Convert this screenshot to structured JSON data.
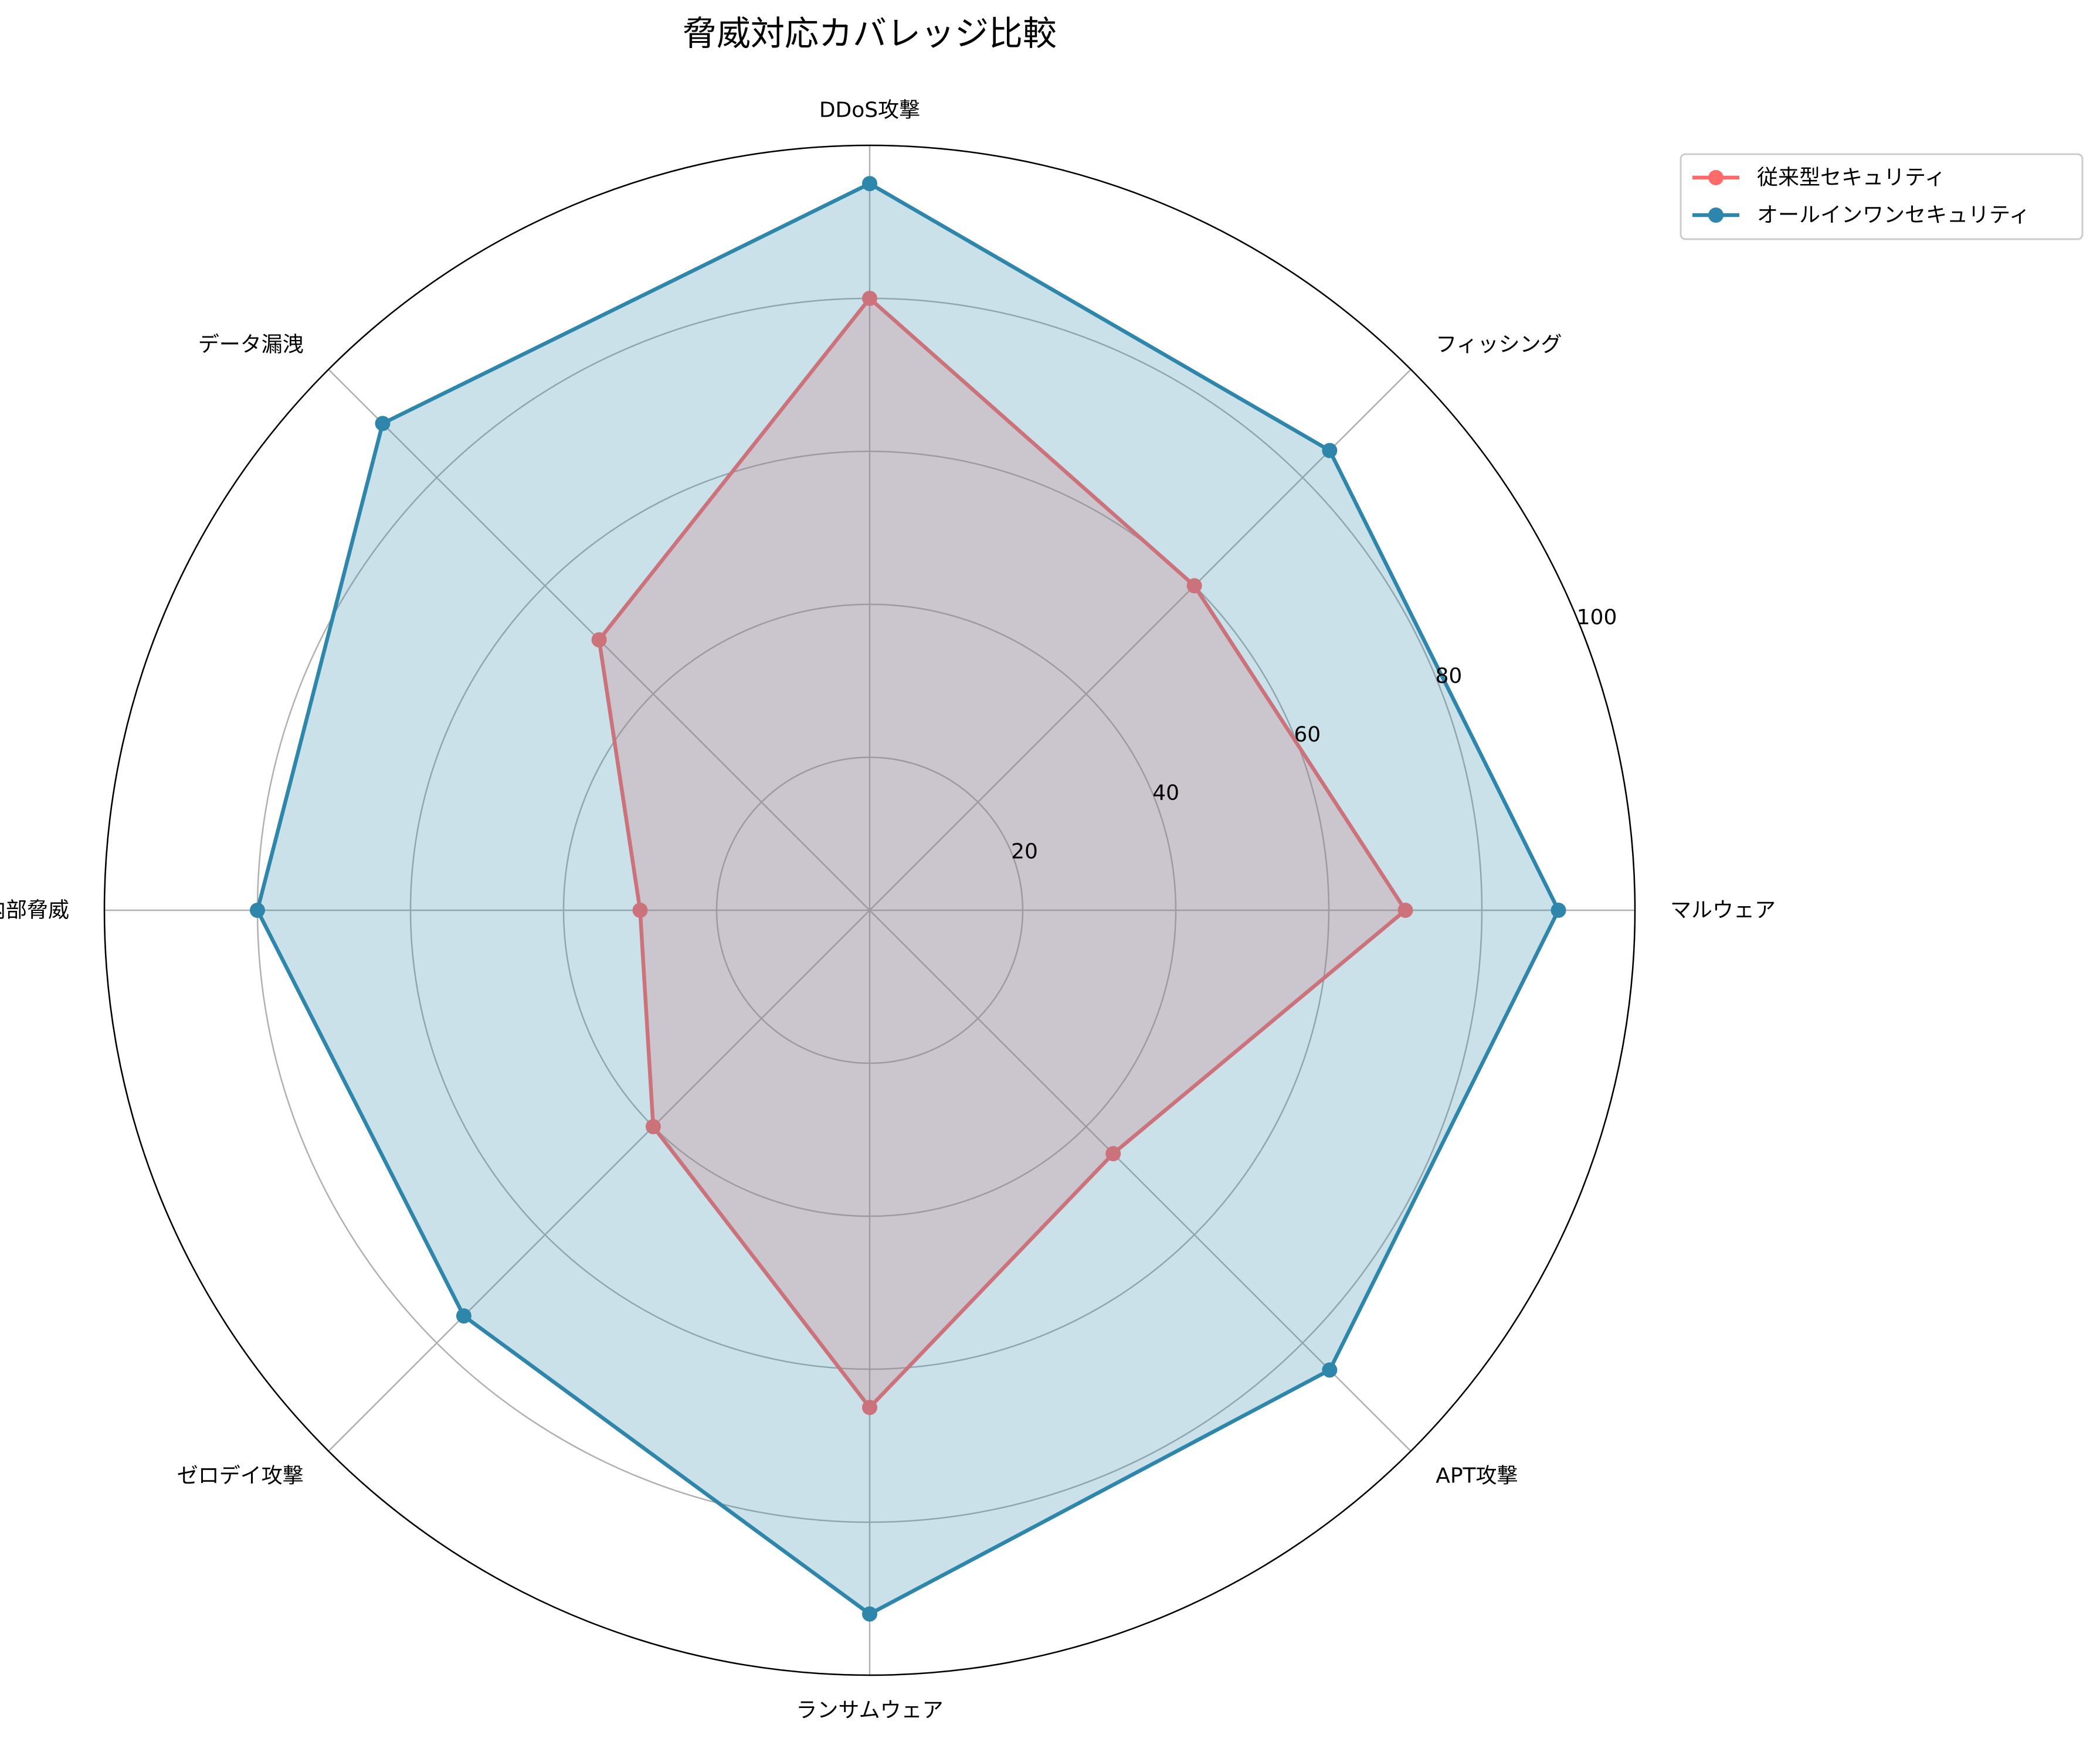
{
  "chart_data": {
    "type": "radar",
    "title": "脅威対応カバレッジ比較",
    "categories": [
      "マルウェア",
      "フィッシング",
      "DDoS攻撃",
      "データ漏洩",
      "内部脅威",
      "ゼロデイ攻撃",
      "ランサムウェア",
      "APT攻撃"
    ],
    "series": [
      {
        "name": "従来型セキュリティ",
        "values": [
          70,
          60,
          80,
          50,
          30,
          40,
          65,
          45
        ],
        "color": "#ff6b6b"
      },
      {
        "name": "オールインワンセキュリティ",
        "values": [
          90,
          85,
          95,
          90,
          80,
          75,
          92,
          85
        ],
        "color": "#2e86ab"
      }
    ],
    "rlim": [
      0,
      100
    ],
    "r_ticks": [
      "20",
      "40",
      "60",
      "80",
      "100"
    ],
    "grid": true,
    "legend_position": "top-right"
  }
}
